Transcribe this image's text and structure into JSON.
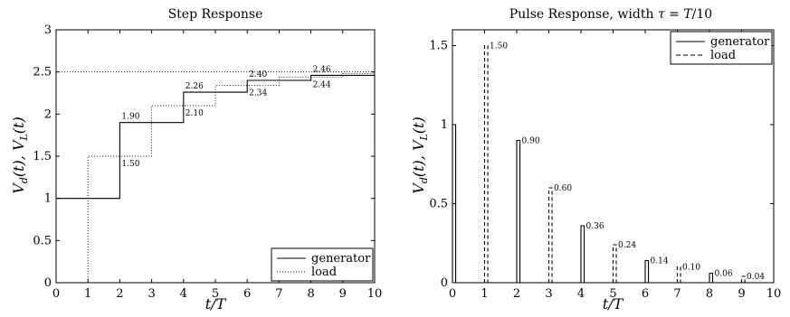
{
  "chart_data": [
    {
      "type": "line",
      "title": "Step Response",
      "xlabel": "t/T",
      "ylabel": "Vd(t), VL(t)",
      "xlim": [
        0,
        10
      ],
      "ylim": [
        0,
        3
      ],
      "xticks": [
        "0",
        "1",
        "2",
        "3",
        "4",
        "5",
        "6",
        "7",
        "8",
        "9",
        "10"
      ],
      "yticks": [
        "0",
        "0.5",
        "1",
        "1.5",
        "2",
        "2.5",
        "3"
      ],
      "grid": false,
      "legend_position": "bottom-right",
      "reference_level": 2.5,
      "series": [
        {
          "name": "generator",
          "style": "solid",
          "x": [
            0,
            2,
            4,
            6,
            8,
            10
          ],
          "y": [
            1,
            1.9,
            2.26,
            2.4,
            2.46,
            2.46
          ]
        },
        {
          "name": "load",
          "style": "dotted",
          "x": [
            1,
            3,
            5,
            7,
            9,
            10
          ],
          "y": [
            1.5,
            2.1,
            2.34,
            2.44,
            2.48,
            2.48
          ]
        }
      ],
      "annotations": [
        {
          "text": "1.90",
          "x": 2.0,
          "y": 1.9,
          "anchor": "above"
        },
        {
          "text": "1.50",
          "x": 2.0,
          "y": 1.5,
          "anchor": "below"
        },
        {
          "text": "2.26",
          "x": 4.0,
          "y": 2.26,
          "anchor": "above"
        },
        {
          "text": "2.10",
          "x": 4.0,
          "y": 2.1,
          "anchor": "below"
        },
        {
          "text": "2.40",
          "x": 6.0,
          "y": 2.4,
          "anchor": "above"
        },
        {
          "text": "2.34",
          "x": 6.0,
          "y": 2.34,
          "anchor": "below"
        },
        {
          "text": "2.46",
          "x": 8.0,
          "y": 2.46,
          "anchor": "above"
        },
        {
          "text": "2.44",
          "x": 8.0,
          "y": 2.44,
          "anchor": "below"
        }
      ]
    },
    {
      "type": "bar",
      "title": "Pulse Response,  width  τ = T/10",
      "xlabel": "t/T",
      "ylabel": "Vd(t), VL(t)",
      "xlim": [
        0,
        10
      ],
      "ylim": [
        0,
        1.6
      ],
      "xticks": [
        "0",
        "1",
        "2",
        "3",
        "4",
        "5",
        "6",
        "7",
        "8",
        "9",
        "10"
      ],
      "yticks": [
        "0",
        "0.5",
        "1",
        "1.5"
      ],
      "pulse_width": 0.1,
      "grid": false,
      "legend_position": "top-right",
      "series": [
        {
          "name": "generator",
          "style": "solid",
          "x": [
            0,
            2,
            4,
            6,
            8
          ],
          "values": [
            1.0,
            0.9,
            0.36,
            0.14,
            0.06
          ]
        },
        {
          "name": "load",
          "style": "dashed",
          "x": [
            1,
            3,
            5,
            7,
            9
          ],
          "values": [
            1.5,
            0.6,
            0.24,
            0.1,
            0.04
          ]
        }
      ],
      "annotations": [
        {
          "text": "1.50",
          "x": 1,
          "y": 1.5
        },
        {
          "text": "0.90",
          "x": 2,
          "y": 0.9
        },
        {
          "text": "0.60",
          "x": 3,
          "y": 0.6
        },
        {
          "text": "0.36",
          "x": 4,
          "y": 0.36
        },
        {
          "text": "0.24",
          "x": 5,
          "y": 0.24
        },
        {
          "text": "0.14",
          "x": 6,
          "y": 0.14
        },
        {
          "text": "0.10",
          "x": 7,
          "y": 0.1
        },
        {
          "text": "0.06",
          "x": 8,
          "y": 0.06
        },
        {
          "text": "0.04",
          "x": 9,
          "y": 0.04
        }
      ]
    }
  ]
}
